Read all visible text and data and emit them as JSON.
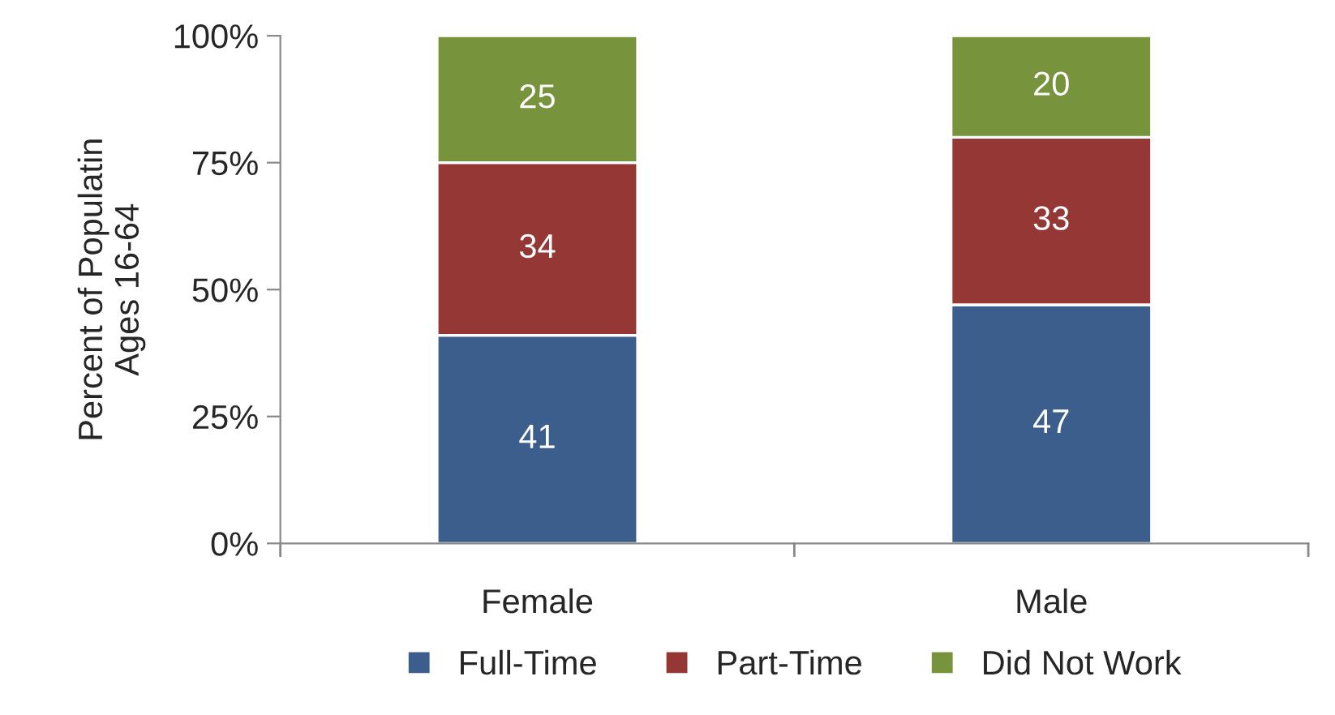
{
  "chart_data": {
    "type": "bar",
    "stacked": true,
    "ylabel": "Percent of Populatin\nAges 16-64",
    "categories": [
      "Female",
      "Male"
    ],
    "series": [
      {
        "name": "Full-Time",
        "color": "#3b5e8c",
        "values": [
          41,
          47
        ]
      },
      {
        "name": "Part-Time",
        "color": "#953735",
        "values": [
          34,
          33
        ]
      },
      {
        "name": "Did Not Work",
        "color": "#77933c",
        "values": [
          25,
          20
        ]
      }
    ],
    "ylim": [
      0,
      100
    ],
    "yticks": [
      {
        "value": 0,
        "label": "0%"
      },
      {
        "value": 25,
        "label": "25%"
      },
      {
        "value": 50,
        "label": "50%"
      },
      {
        "value": 75,
        "label": "75%"
      },
      {
        "value": 100,
        "label": "100%"
      }
    ],
    "data_labels": true,
    "legend": "bottom",
    "grid": false
  }
}
